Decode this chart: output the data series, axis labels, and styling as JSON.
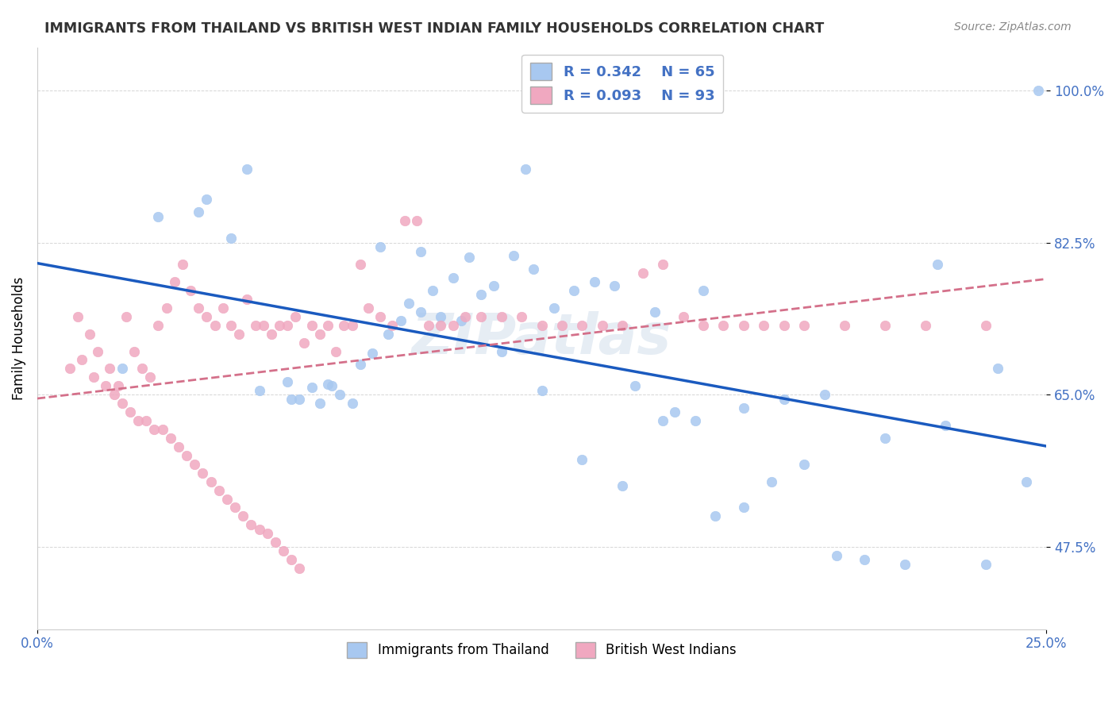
{
  "title": "IMMIGRANTS FROM THAILAND VS BRITISH WEST INDIAN FAMILY HOUSEHOLDS CORRELATION CHART",
  "source_text": "Source: ZipAtlas.com",
  "ylabel": "Family Households",
  "ytick_labels": [
    "100.0%",
    "82.5%",
    "65.0%",
    "47.5%"
  ],
  "ytick_values": [
    1.0,
    0.825,
    0.65,
    0.475
  ],
  "xmin": 0.0,
  "xmax": 0.25,
  "ymin": 0.38,
  "ymax": 1.05,
  "legend_r1": "R = 0.342",
  "legend_n1": "N = 65",
  "legend_r2": "R = 0.093",
  "legend_n2": "N = 93",
  "color_blue": "#a8c8f0",
  "color_pink": "#f0a8c0",
  "color_blue_text": "#4472c4",
  "line_blue": "#1a5abf",
  "line_pink": "#d4708a",
  "watermark": "ZIPatlas",
  "legend_label_blue": "Immigrants from Thailand",
  "legend_label_pink": "British West Indians",
  "blue_x": [
    0.042,
    0.021,
    0.121,
    0.055,
    0.063,
    0.073,
    0.052,
    0.085,
    0.095,
    0.105,
    0.115,
    0.125,
    0.135,
    0.145,
    0.155,
    0.165,
    0.175,
    0.185,
    0.195,
    0.205,
    0.215,
    0.225,
    0.235,
    0.245,
    0.248,
    0.062,
    0.065,
    0.068,
    0.07,
    0.072,
    0.075,
    0.078,
    0.08,
    0.083,
    0.087,
    0.09,
    0.092,
    0.095,
    0.098,
    0.1,
    0.103,
    0.107,
    0.11,
    0.113,
    0.118,
    0.123,
    0.128,
    0.133,
    0.138,
    0.143,
    0.148,
    0.153,
    0.158,
    0.163,
    0.168,
    0.175,
    0.182,
    0.19,
    0.198,
    0.21,
    0.223,
    0.238,
    0.03,
    0.04,
    0.048
  ],
  "blue_y": [
    0.875,
    0.68,
    0.91,
    0.655,
    0.645,
    0.66,
    0.91,
    0.82,
    0.815,
    0.735,
    0.7,
    0.655,
    0.575,
    0.545,
    0.62,
    0.77,
    0.635,
    0.645,
    0.65,
    0.46,
    0.455,
    0.615,
    0.455,
    0.55,
    1.0,
    0.665,
    0.645,
    0.658,
    0.64,
    0.662,
    0.65,
    0.64,
    0.685,
    0.698,
    0.72,
    0.735,
    0.755,
    0.745,
    0.77,
    0.74,
    0.785,
    0.808,
    0.765,
    0.775,
    0.81,
    0.795,
    0.75,
    0.77,
    0.78,
    0.775,
    0.66,
    0.745,
    0.63,
    0.62,
    0.51,
    0.52,
    0.55,
    0.57,
    0.465,
    0.6,
    0.8,
    0.68,
    0.855,
    0.86,
    0.83
  ],
  "pink_x": [
    0.008,
    0.01,
    0.013,
    0.015,
    0.018,
    0.02,
    0.022,
    0.024,
    0.026,
    0.028,
    0.03,
    0.032,
    0.034,
    0.036,
    0.038,
    0.04,
    0.042,
    0.044,
    0.046,
    0.048,
    0.05,
    0.052,
    0.054,
    0.056,
    0.058,
    0.06,
    0.062,
    0.064,
    0.066,
    0.068,
    0.07,
    0.072,
    0.074,
    0.076,
    0.078,
    0.08,
    0.082,
    0.085,
    0.088,
    0.091,
    0.094,
    0.097,
    0.1,
    0.103,
    0.106,
    0.11,
    0.115,
    0.12,
    0.125,
    0.13,
    0.135,
    0.14,
    0.145,
    0.15,
    0.155,
    0.16,
    0.165,
    0.17,
    0.175,
    0.18,
    0.185,
    0.19,
    0.2,
    0.21,
    0.22,
    0.235,
    0.011,
    0.014,
    0.017,
    0.019,
    0.021,
    0.023,
    0.025,
    0.027,
    0.029,
    0.031,
    0.033,
    0.035,
    0.037,
    0.039,
    0.041,
    0.043,
    0.045,
    0.047,
    0.049,
    0.051,
    0.053,
    0.055,
    0.057,
    0.059,
    0.061,
    0.063,
    0.065
  ],
  "pink_y": [
    0.68,
    0.74,
    0.72,
    0.7,
    0.68,
    0.66,
    0.74,
    0.7,
    0.68,
    0.67,
    0.73,
    0.75,
    0.78,
    0.8,
    0.77,
    0.75,
    0.74,
    0.73,
    0.75,
    0.73,
    0.72,
    0.76,
    0.73,
    0.73,
    0.72,
    0.73,
    0.73,
    0.74,
    0.71,
    0.73,
    0.72,
    0.73,
    0.7,
    0.73,
    0.73,
    0.8,
    0.75,
    0.74,
    0.73,
    0.85,
    0.85,
    0.73,
    0.73,
    0.73,
    0.74,
    0.74,
    0.74,
    0.74,
    0.73,
    0.73,
    0.73,
    0.73,
    0.73,
    0.79,
    0.8,
    0.74,
    0.73,
    0.73,
    0.73,
    0.73,
    0.73,
    0.73,
    0.73,
    0.73,
    0.73,
    0.73,
    0.69,
    0.67,
    0.66,
    0.65,
    0.64,
    0.63,
    0.62,
    0.62,
    0.61,
    0.61,
    0.6,
    0.59,
    0.58,
    0.57,
    0.56,
    0.55,
    0.54,
    0.53,
    0.52,
    0.51,
    0.5,
    0.495,
    0.49,
    0.48,
    0.47,
    0.46,
    0.45
  ]
}
